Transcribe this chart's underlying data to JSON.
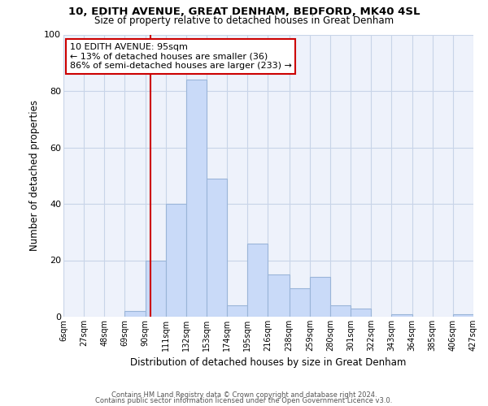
{
  "title": "10, EDITH AVENUE, GREAT DENHAM, BEDFORD, MK40 4SL",
  "subtitle": "Size of property relative to detached houses in Great Denham",
  "xlabel": "Distribution of detached houses by size in Great Denham",
  "ylabel": "Number of detached properties",
  "bar_color": "#c9daf8",
  "bar_edge_color": "#9ab5d8",
  "grid_color": "#c8d4e8",
  "background_color": "#eef2fb",
  "vline_color": "#cc0000",
  "annotation_box_edge": "#cc0000",
  "bin_edges": [
    6,
    27,
    48,
    69,
    90,
    111,
    132,
    153,
    174,
    195,
    216,
    238,
    259,
    280,
    301,
    322,
    343,
    364,
    385,
    406,
    427
  ],
  "bin_labels": [
    "6sqm",
    "27sqm",
    "48sqm",
    "69sqm",
    "90sqm",
    "111sqm",
    "132sqm",
    "153sqm",
    "174sqm",
    "195sqm",
    "216sqm",
    "238sqm",
    "259sqm",
    "280sqm",
    "301sqm",
    "322sqm",
    "343sqm",
    "364sqm",
    "385sqm",
    "406sqm",
    "427sqm"
  ],
  "counts": [
    0,
    0,
    0,
    2,
    20,
    40,
    84,
    49,
    4,
    26,
    15,
    10,
    14,
    4,
    3,
    0,
    1,
    0,
    0,
    1
  ],
  "vline_x": 95,
  "ylim": [
    0,
    100
  ],
  "yticks": [
    0,
    20,
    40,
    60,
    80,
    100
  ],
  "annot_line1": "10 EDITH AVENUE: 95sqm",
  "annot_line2": "← 13% of detached houses are smaller (36)",
  "annot_line3": "86% of semi-detached houses are larger (233) →",
  "footer_line1": "Contains HM Land Registry data © Crown copyright and database right 2024.",
  "footer_line2": "Contains public sector information licensed under the Open Government Licence v3.0."
}
